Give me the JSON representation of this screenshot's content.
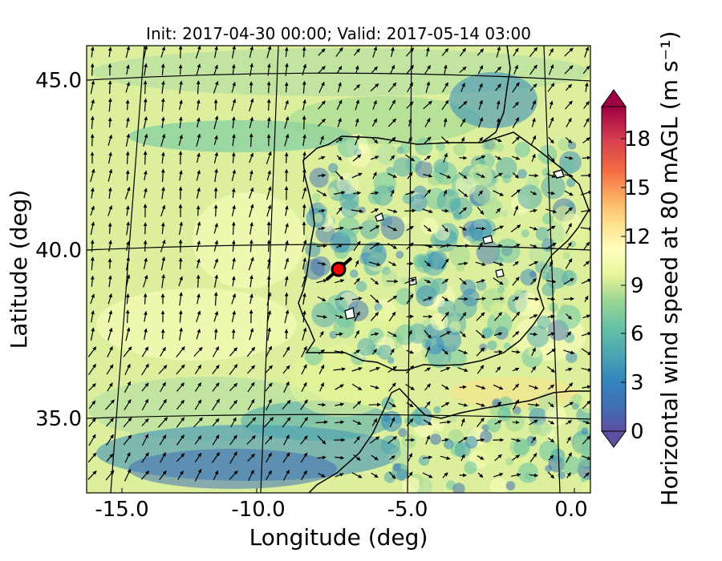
{
  "title": "Init: 2017-04-30 00:00; Valid: 2017-05-14 03:00",
  "xaxis": {
    "label": "Longitude (deg)",
    "ticks": [
      "-15.0",
      "-10.0",
      "-5.0",
      "0.0"
    ]
  },
  "yaxis": {
    "label": "Latitude (deg)",
    "ticks": [
      "45.0",
      "40.0",
      "35.0"
    ]
  },
  "colorbar": {
    "label": "Horizontal wind speed at 80 mAGL (m s⁻¹)",
    "ticks": [
      "0",
      "3",
      "6",
      "9",
      "12",
      "15",
      "18"
    ],
    "range": [
      0,
      20
    ],
    "extend": "both",
    "colormap": [
      "#5e4fa2",
      "#3f6fb6",
      "#3288bd",
      "#4ba7b1",
      "#66c2a5",
      "#99d594",
      "#abdda4",
      "#e6f598",
      "#ffffbf",
      "#fee08b",
      "#fdae61",
      "#f46d43",
      "#d53e4f",
      "#9e0142"
    ]
  },
  "map": {
    "lon_range": [
      -16,
      0.2
    ],
    "lat_range": [
      33,
      46
    ],
    "gridlines": true,
    "coastline_color": "#000000",
    "vectors": "wind arrows",
    "marker": {
      "color": "#ff0000",
      "edge": "#000000"
    }
  }
}
